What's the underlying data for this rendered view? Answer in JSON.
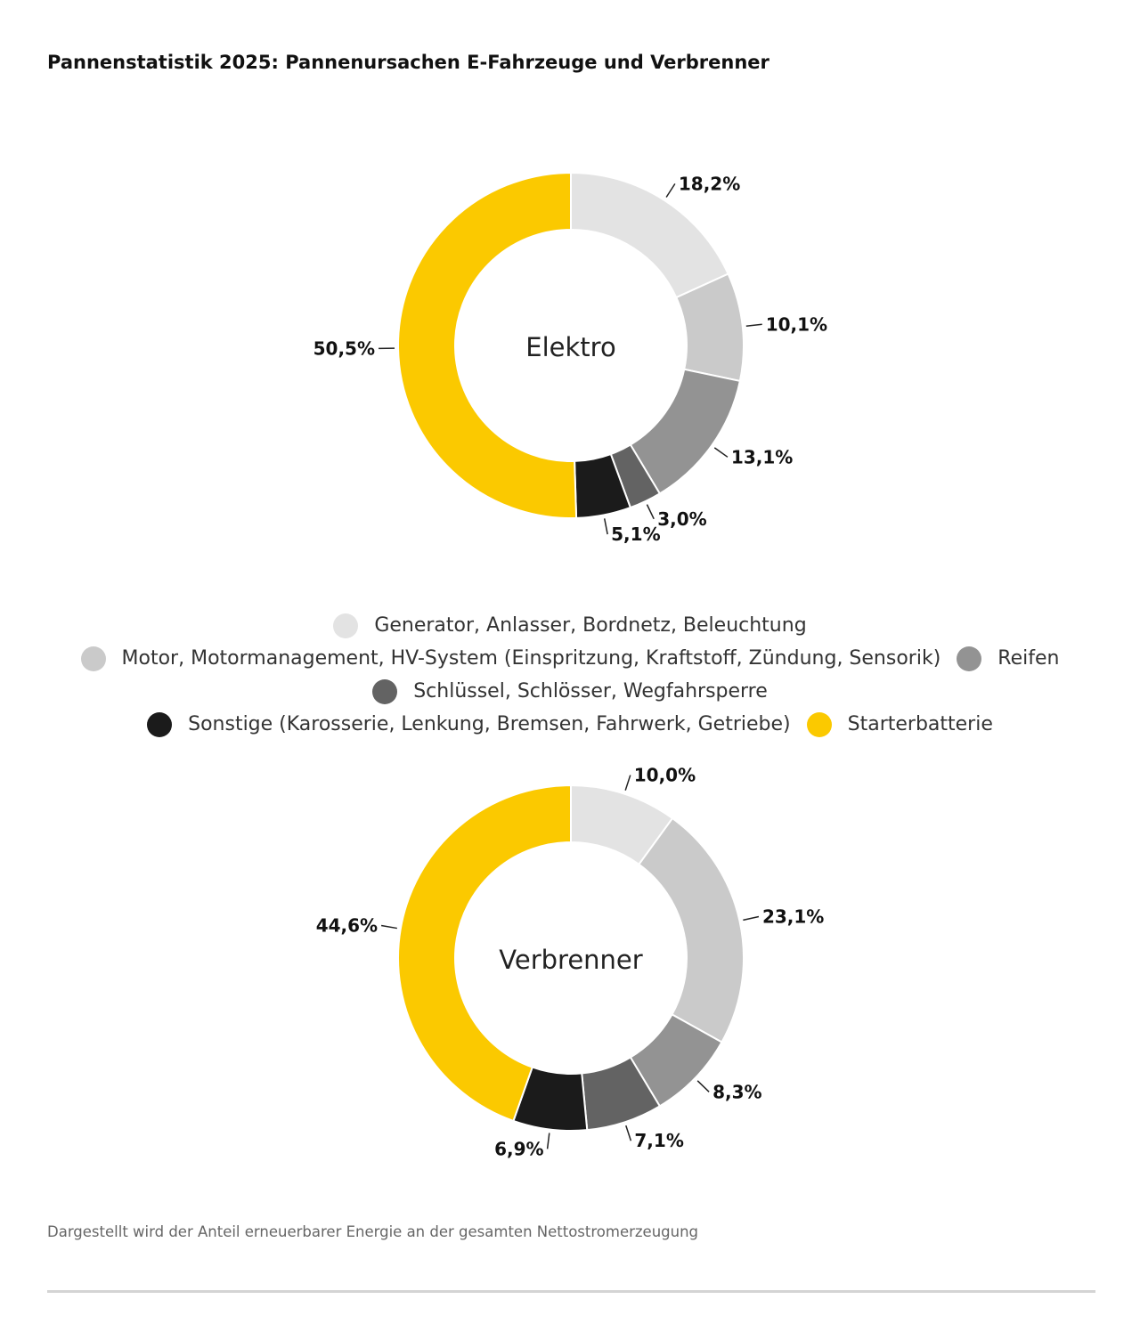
{
  "title": "Pannenstatistik 2025: Pannenursachen E-Fahrzeuge und Verbrenner",
  "footer": "Dargestellt wird der Anteil erneuerbarer Energie an der gesamten Nettostromerzeugung",
  "chart_data": {
    "type": "pie",
    "categories": [
      "Generator, Anlasser, Bordnetz, Beleuchtung",
      "Motor, Motormanagement, HV-System (Einspritzung, Kraftstoff, Zündung, Sensorik)",
      "Reifen",
      "Schlüssel, Schlösser, Wegfahrsperre",
      "Sonstige (Karosserie, Lenkung, Bremsen, Fahrwerk, Getriebe)",
      "Starterbatterie"
    ],
    "colors": [
      "#e3e3e3",
      "#cacaca",
      "#939393",
      "#636363",
      "#1b1b1b",
      "#fbc900"
    ],
    "series": [
      {
        "name": "Elektro",
        "values": [
          18.2,
          10.1,
          13.1,
          3.0,
          5.1,
          50.5
        ],
        "labels": [
          "18,2%",
          "10,1%",
          "13,1%",
          "3,0%",
          "5,1%",
          "50,5%"
        ]
      },
      {
        "name": "Verbrenner",
        "values": [
          10.0,
          23.1,
          8.3,
          7.1,
          6.9,
          44.6
        ],
        "labels": [
          "10,0%",
          "23,1%",
          "8,3%",
          "7,1%",
          "6,9%",
          "44,6%"
        ]
      }
    ],
    "legend_placement": "between charts, centered"
  }
}
